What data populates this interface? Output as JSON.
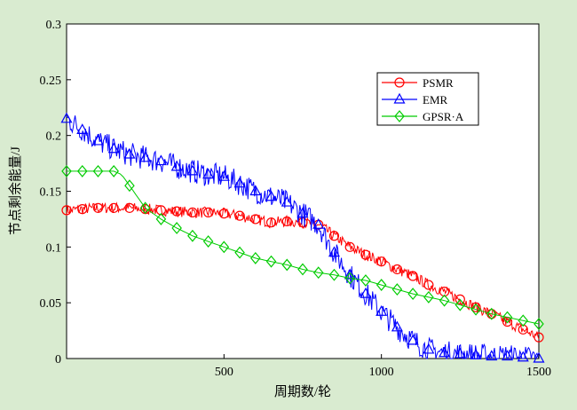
{
  "chart_data": {
    "type": "line",
    "title": "",
    "xlabel": "周期数/轮",
    "ylabel": "节点剩余能量/J",
    "xlim": [
      0,
      1500
    ],
    "ylim": [
      0,
      0.3
    ],
    "x_ticks": [
      "500",
      "1000",
      "1500"
    ],
    "y_ticks": [
      "0",
      "0.05",
      "0.1",
      "0.15",
      "0.2",
      "0.25",
      "0.3"
    ],
    "grid": false,
    "legend_position": "top-right",
    "series": [
      {
        "name": "PSMR",
        "color": "#ff0000",
        "marker": "circle",
        "noise": 0.005,
        "x": [
          0,
          50,
          100,
          150,
          200,
          250,
          300,
          350,
          400,
          450,
          500,
          550,
          600,
          650,
          700,
          750,
          800,
          850,
          900,
          950,
          1000,
          1050,
          1100,
          1150,
          1200,
          1250,
          1300,
          1350,
          1400,
          1450,
          1500
        ],
        "values": [
          0.133,
          0.134,
          0.135,
          0.135,
          0.135,
          0.134,
          0.133,
          0.132,
          0.131,
          0.131,
          0.13,
          0.128,
          0.125,
          0.122,
          0.123,
          0.122,
          0.12,
          0.11,
          0.1,
          0.093,
          0.087,
          0.08,
          0.074,
          0.066,
          0.06,
          0.053,
          0.046,
          0.04,
          0.033,
          0.026,
          0.019
        ]
      },
      {
        "name": "EMR",
        "color": "#0000ff",
        "marker": "triangle",
        "noise": 0.011,
        "x": [
          0,
          50,
          100,
          150,
          200,
          250,
          300,
          350,
          400,
          450,
          500,
          550,
          600,
          650,
          700,
          750,
          800,
          850,
          900,
          950,
          1000,
          1050,
          1100,
          1150,
          1200,
          1250,
          1300,
          1350,
          1400,
          1450,
          1500
        ],
        "values": [
          0.215,
          0.205,
          0.195,
          0.188,
          0.183,
          0.18,
          0.177,
          0.172,
          0.168,
          0.165,
          0.163,
          0.157,
          0.15,
          0.145,
          0.14,
          0.13,
          0.12,
          0.095,
          0.075,
          0.058,
          0.042,
          0.028,
          0.016,
          0.008,
          0.005,
          0.004,
          0.003,
          0.002,
          0.002,
          0.001,
          0.0
        ]
      },
      {
        "name": "GPSR·A",
        "color": "#00cc00",
        "marker": "diamond",
        "noise": 0,
        "x": [
          0,
          50,
          100,
          150,
          175,
          200,
          250,
          300,
          350,
          400,
          450,
          500,
          550,
          600,
          650,
          700,
          750,
          800,
          850,
          900,
          950,
          1000,
          1050,
          1100,
          1150,
          1200,
          1250,
          1300,
          1350,
          1400,
          1450,
          1500
        ],
        "values": [
          0.168,
          0.168,
          0.168,
          0.168,
          0.165,
          0.155,
          0.135,
          0.125,
          0.117,
          0.11,
          0.105,
          0.1,
          0.095,
          0.09,
          0.087,
          0.084,
          0.08,
          0.077,
          0.075,
          0.072,
          0.07,
          0.066,
          0.062,
          0.058,
          0.055,
          0.052,
          0.048,
          0.044,
          0.04,
          0.037,
          0.034,
          0.031
        ]
      }
    ]
  }
}
